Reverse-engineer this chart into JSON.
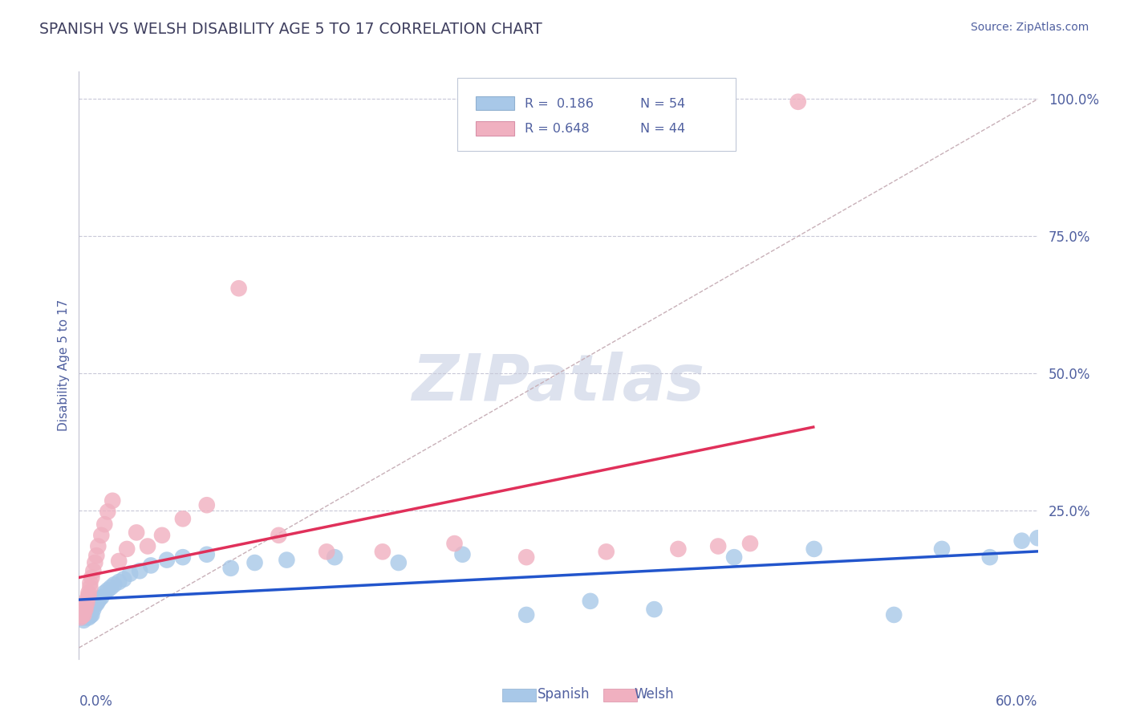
{
  "title": "SPANISH VS WELSH DISABILITY AGE 5 TO 17 CORRELATION CHART",
  "source_text": "Source: ZipAtlas.com",
  "ylabel": "Disability Age 5 to 17",
  "xlim": [
    0.0,
    0.6
  ],
  "ylim": [
    -0.02,
    1.05
  ],
  "ytick_positions": [
    0.25,
    0.5,
    0.75,
    1.0
  ],
  "ytick_labels": [
    "25.0%",
    "50.0%",
    "75.0%",
    "100.0%"
  ],
  "spanish_color": "#a8c8e8",
  "welsh_color": "#f0b0c0",
  "spanish_line_color": "#2255cc",
  "welsh_line_color": "#e0305a",
  "diagonal_color": "#c8b0b8",
  "grid_color": "#c8c8d8",
  "title_color": "#404060",
  "axis_label_color": "#5060a0",
  "tick_label_color": "#5060a0",
  "watermark_color": "#dde2ee",
  "background_color": "#ffffff",
  "figsize": [
    14.06,
    8.92
  ],
  "dpi": 100,
  "spanish_x": [
    0.001,
    0.002,
    0.002,
    0.002,
    0.003,
    0.003,
    0.003,
    0.004,
    0.004,
    0.004,
    0.005,
    0.005,
    0.005,
    0.006,
    0.006,
    0.006,
    0.007,
    0.007,
    0.008,
    0.008,
    0.009,
    0.01,
    0.011,
    0.012,
    0.013,
    0.014,
    0.016,
    0.018,
    0.02,
    0.022,
    0.025,
    0.028,
    0.032,
    0.038,
    0.045,
    0.055,
    0.065,
    0.08,
    0.095,
    0.11,
    0.13,
    0.16,
    0.2,
    0.24,
    0.28,
    0.32,
    0.36,
    0.41,
    0.46,
    0.51,
    0.54,
    0.57,
    0.59,
    0.6
  ],
  "spanish_y": [
    0.06,
    0.055,
    0.062,
    0.058,
    0.05,
    0.065,
    0.07,
    0.055,
    0.06,
    0.068,
    0.058,
    0.062,
    0.068,
    0.055,
    0.06,
    0.072,
    0.058,
    0.065,
    0.06,
    0.075,
    0.07,
    0.078,
    0.08,
    0.085,
    0.09,
    0.092,
    0.1,
    0.105,
    0.11,
    0.115,
    0.12,
    0.125,
    0.135,
    0.14,
    0.15,
    0.16,
    0.165,
    0.17,
    0.145,
    0.155,
    0.16,
    0.165,
    0.155,
    0.17,
    0.06,
    0.085,
    0.07,
    0.165,
    0.18,
    0.06,
    0.18,
    0.165,
    0.195,
    0.2
  ],
  "welsh_x": [
    0.001,
    0.001,
    0.002,
    0.002,
    0.002,
    0.003,
    0.003,
    0.003,
    0.004,
    0.004,
    0.004,
    0.005,
    0.005,
    0.006,
    0.006,
    0.007,
    0.007,
    0.008,
    0.009,
    0.01,
    0.011,
    0.012,
    0.014,
    0.016,
    0.018,
    0.021,
    0.025,
    0.03,
    0.036,
    0.043,
    0.052,
    0.065,
    0.08,
    0.1,
    0.125,
    0.155,
    0.19,
    0.235,
    0.28,
    0.33,
    0.375,
    0.4,
    0.42,
    0.45
  ],
  "welsh_y": [
    0.055,
    0.06,
    0.058,
    0.062,
    0.065,
    0.06,
    0.068,
    0.075,
    0.07,
    0.075,
    0.08,
    0.082,
    0.088,
    0.095,
    0.1,
    0.11,
    0.118,
    0.128,
    0.14,
    0.155,
    0.168,
    0.185,
    0.205,
    0.225,
    0.248,
    0.268,
    0.158,
    0.18,
    0.21,
    0.185,
    0.205,
    0.235,
    0.26,
    0.655,
    0.205,
    0.175,
    0.175,
    0.19,
    0.165,
    0.175,
    0.18,
    0.185,
    0.19,
    0.995
  ]
}
